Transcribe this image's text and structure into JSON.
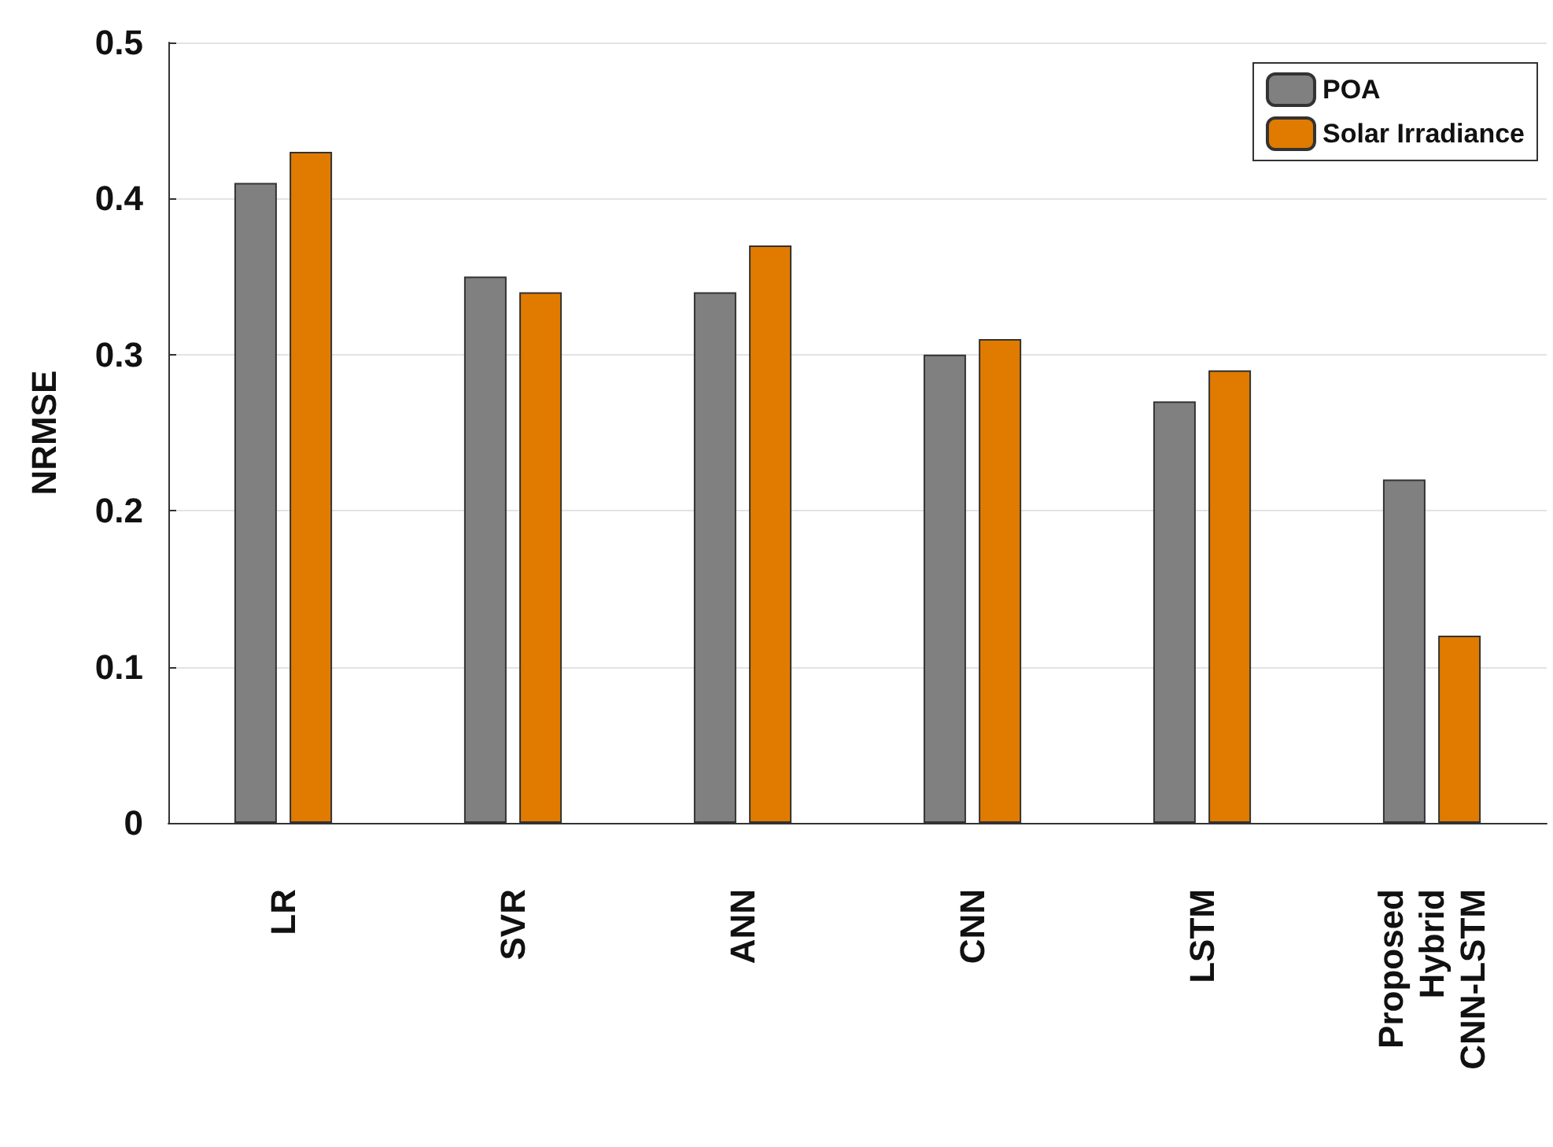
{
  "chart_data": {
    "type": "bar",
    "ylabel": "NRMSE",
    "categories": [
      "LR",
      "SVR",
      "ANN",
      "CNN",
      "LSTM",
      "Proposed Hybrid CNN-LSTM"
    ],
    "series": [
      {
        "name": "POA",
        "color": "#808080",
        "values": [
          0.41,
          0.35,
          0.34,
          0.3,
          0.27,
          0.22
        ]
      },
      {
        "name": "Solar Irradiance",
        "color": "#e07b00",
        "values": [
          0.43,
          0.34,
          0.37,
          0.31,
          0.29,
          0.12
        ]
      }
    ],
    "ylim": [
      0,
      0.5
    ],
    "yticks": [
      0,
      0.1,
      0.2,
      0.3,
      0.4,
      0.5
    ],
    "grid": "y",
    "legend": "top right"
  }
}
